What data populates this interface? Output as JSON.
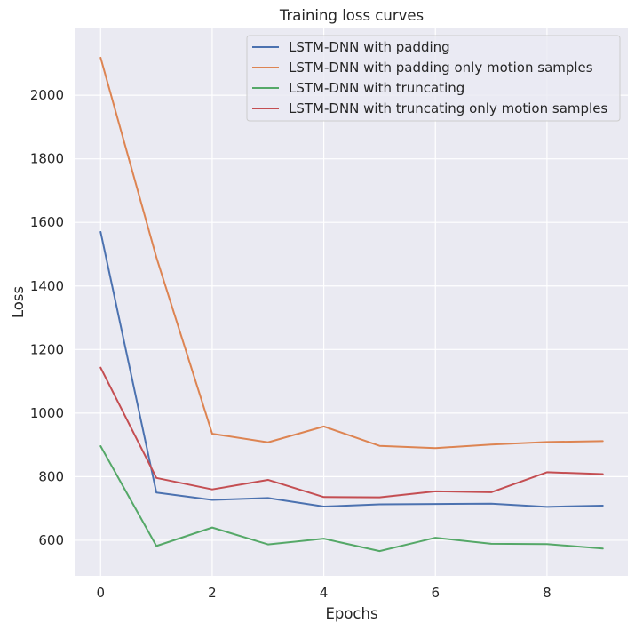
{
  "chart_data": {
    "type": "line",
    "title": "Training loss curves",
    "xlabel": "Epochs",
    "ylabel": "Loss",
    "x": [
      0,
      1,
      2,
      3,
      4,
      5,
      6,
      7,
      8,
      9
    ],
    "xlim": [
      -0.45,
      9.45
    ],
    "ylim": [
      488,
      2210
    ],
    "xticks": [
      0,
      2,
      4,
      6,
      8
    ],
    "yticks": [
      600,
      800,
      1000,
      1200,
      1400,
      1600,
      1800,
      2000
    ],
    "grid": true,
    "legend_position": "top-right",
    "background": "#eaeaf2",
    "series": [
      {
        "name": "LSTM-DNN with padding",
        "color": "#4c72b0",
        "values": [
          1570,
          750,
          727,
          733,
          706,
          713,
          714,
          715,
          705,
          709
        ]
      },
      {
        "name": "LSTM-DNN with padding only motion samples",
        "color": "#dd8452",
        "values": [
          2118,
          1490,
          935,
          908,
          958,
          897,
          890,
          901,
          909,
          912
        ]
      },
      {
        "name": "LSTM-DNN with truncating",
        "color": "#55a868",
        "values": [
          896,
          582,
          640,
          587,
          605,
          566,
          608,
          589,
          588,
          574
        ]
      },
      {
        "name": "LSTM-DNN with truncating only motion samples",
        "color": "#c44e52",
        "values": [
          1143,
          796,
          760,
          790,
          736,
          735,
          754,
          751,
          814,
          808
        ]
      }
    ]
  }
}
